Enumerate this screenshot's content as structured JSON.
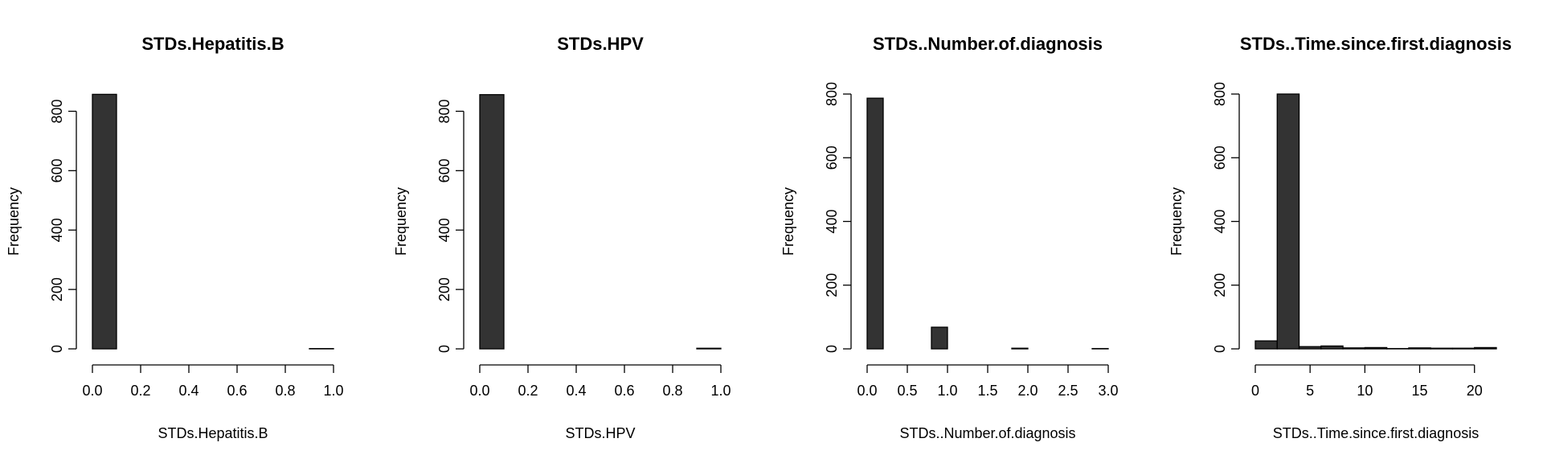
{
  "colors": {
    "bar_fill": "#333333",
    "bar_stroke": "#000000",
    "axis": "#000000",
    "background": "#ffffff"
  },
  "chart_data": [
    {
      "type": "bar",
      "title": "STDs.Hepatitis.B",
      "xlabel": "STDs.Hepatitis.B",
      "ylabel": "Frequency",
      "xlim": [
        0,
        1
      ],
      "ylim": [
        0,
        858
      ],
      "x_ticks": [
        "0.0",
        "0.2",
        "0.4",
        "0.6",
        "0.8",
        "1.0"
      ],
      "y_ticks": [
        "0",
        "200",
        "400",
        "600",
        "800"
      ],
      "bins": [
        [
          0.0,
          0.1
        ],
        [
          0.1,
          0.2
        ],
        [
          0.2,
          0.3
        ],
        [
          0.3,
          0.4
        ],
        [
          0.4,
          0.5
        ],
        [
          0.5,
          0.6
        ],
        [
          0.6,
          0.7
        ],
        [
          0.7,
          0.8
        ],
        [
          0.8,
          0.9
        ],
        [
          0.9,
          1.0
        ]
      ],
      "values": [
        857,
        0,
        0,
        0,
        0,
        0,
        0,
        0,
        0,
        1
      ],
      "grid": false,
      "legend": "none"
    },
    {
      "type": "bar",
      "title": "STDs.HPV",
      "xlabel": "STDs.HPV",
      "ylabel": "Frequency",
      "xlim": [
        0,
        1
      ],
      "ylim": [
        0,
        858
      ],
      "x_ticks": [
        "0.0",
        "0.2",
        "0.4",
        "0.6",
        "0.8",
        "1.0"
      ],
      "y_ticks": [
        "0",
        "200",
        "400",
        "600",
        "800"
      ],
      "bins": [
        [
          0.0,
          0.1
        ],
        [
          0.1,
          0.2
        ],
        [
          0.2,
          0.3
        ],
        [
          0.3,
          0.4
        ],
        [
          0.4,
          0.5
        ],
        [
          0.5,
          0.6
        ],
        [
          0.6,
          0.7
        ],
        [
          0.7,
          0.8
        ],
        [
          0.8,
          0.9
        ],
        [
          0.9,
          1.0
        ]
      ],
      "values": [
        856,
        0,
        0,
        0,
        0,
        0,
        0,
        0,
        0,
        2
      ],
      "grid": false,
      "legend": "none"
    },
    {
      "type": "bar",
      "title": "STDs..Number.of.diagnosis",
      "xlabel": "STDs..Number.of.diagnosis",
      "ylabel": "Frequency",
      "xlim": [
        0,
        3
      ],
      "ylim": [
        0,
        800
      ],
      "x_ticks": [
        "0.0",
        "0.5",
        "1.0",
        "1.5",
        "2.0",
        "2.5",
        "3.0"
      ],
      "y_ticks": [
        "0",
        "200",
        "400",
        "600",
        "800"
      ],
      "bins": [
        [
          0.0,
          0.2
        ],
        [
          0.2,
          0.4
        ],
        [
          0.4,
          0.6
        ],
        [
          0.6,
          0.8
        ],
        [
          0.8,
          1.0
        ],
        [
          1.0,
          1.2
        ],
        [
          1.2,
          1.4
        ],
        [
          1.4,
          1.6
        ],
        [
          1.6,
          1.8
        ],
        [
          1.8,
          2.0
        ],
        [
          2.0,
          2.2
        ],
        [
          2.2,
          2.4
        ],
        [
          2.4,
          2.6
        ],
        [
          2.6,
          2.8
        ],
        [
          2.8,
          3.0
        ]
      ],
      "values": [
        787,
        0,
        0,
        0,
        68,
        0,
        0,
        0,
        0,
        2,
        0,
        0,
        0,
        0,
        1
      ],
      "grid": false,
      "legend": "none"
    },
    {
      "type": "bar",
      "title": "STDs..Time.since.first.diagnosis",
      "xlabel": "STDs..Time.since.first.diagnosis",
      "ylabel": "Frequency",
      "xlim": [
        0,
        22
      ],
      "ylim": [
        0,
        800
      ],
      "x_ticks": [
        "0",
        "5",
        "10",
        "15",
        "20"
      ],
      "y_ticks": [
        "0",
        "200",
        "400",
        "600",
        "800"
      ],
      "bins": [
        [
          0,
          2
        ],
        [
          2,
          4
        ],
        [
          4,
          6
        ],
        [
          6,
          8
        ],
        [
          8,
          10
        ],
        [
          10,
          12
        ],
        [
          12,
          14
        ],
        [
          14,
          16
        ],
        [
          16,
          18
        ],
        [
          18,
          20
        ],
        [
          20,
          22
        ]
      ],
      "values": [
        25,
        800,
        7,
        9,
        3,
        4,
        1,
        3,
        2,
        2,
        4
      ],
      "grid": false,
      "legend": "none"
    }
  ]
}
